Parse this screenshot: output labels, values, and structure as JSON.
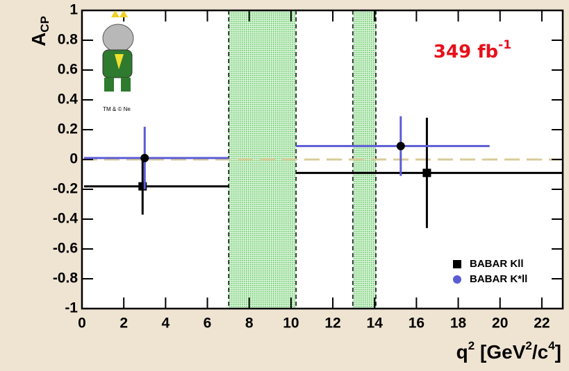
{
  "chart_data": {
    "type": "errorbar",
    "y_label": [
      "A",
      "CP"
    ],
    "x_label": [
      "q",
      "2",
      " [GeV",
      "2",
      "/c",
      "4",
      "]"
    ],
    "annotation": [
      "349 fb",
      "-1"
    ],
    "logo_text": "TM & © Ne",
    "xlim": [
      0,
      23
    ],
    "xticks": [
      0,
      2,
      4,
      6,
      8,
      10,
      12,
      14,
      16,
      18,
      20,
      22
    ],
    "ylim": [
      -1,
      1
    ],
    "yticks": [
      -1,
      -0.8,
      -0.6,
      -0.4,
      -0.2,
      0,
      0.2,
      0.4,
      0.6,
      0.8,
      1
    ],
    "bands": [
      [
        7.02,
        10.24
      ],
      [
        12.96,
        14.06
      ]
    ],
    "series": [
      {
        "name": "BABAR Kll",
        "color": "#000000",
        "marker": "square",
        "x": [
          2.9,
          16.5
        ],
        "x_low": [
          0.1,
          10.24
        ],
        "x_high": [
          7.02,
          23
        ],
        "values": [
          -0.18,
          -0.09
        ],
        "errors": [
          0.19,
          0.37
        ]
      },
      {
        "name": "BABAR K*ll",
        "color": "#5b5bd6",
        "marker": "circle",
        "x": [
          3.0,
          15.25
        ],
        "x_low": [
          0.1,
          10.24
        ],
        "x_high": [
          7.02,
          19.5
        ],
        "values": [
          0.01,
          0.09
        ],
        "errors": [
          0.21,
          0.2
        ]
      }
    ]
  }
}
